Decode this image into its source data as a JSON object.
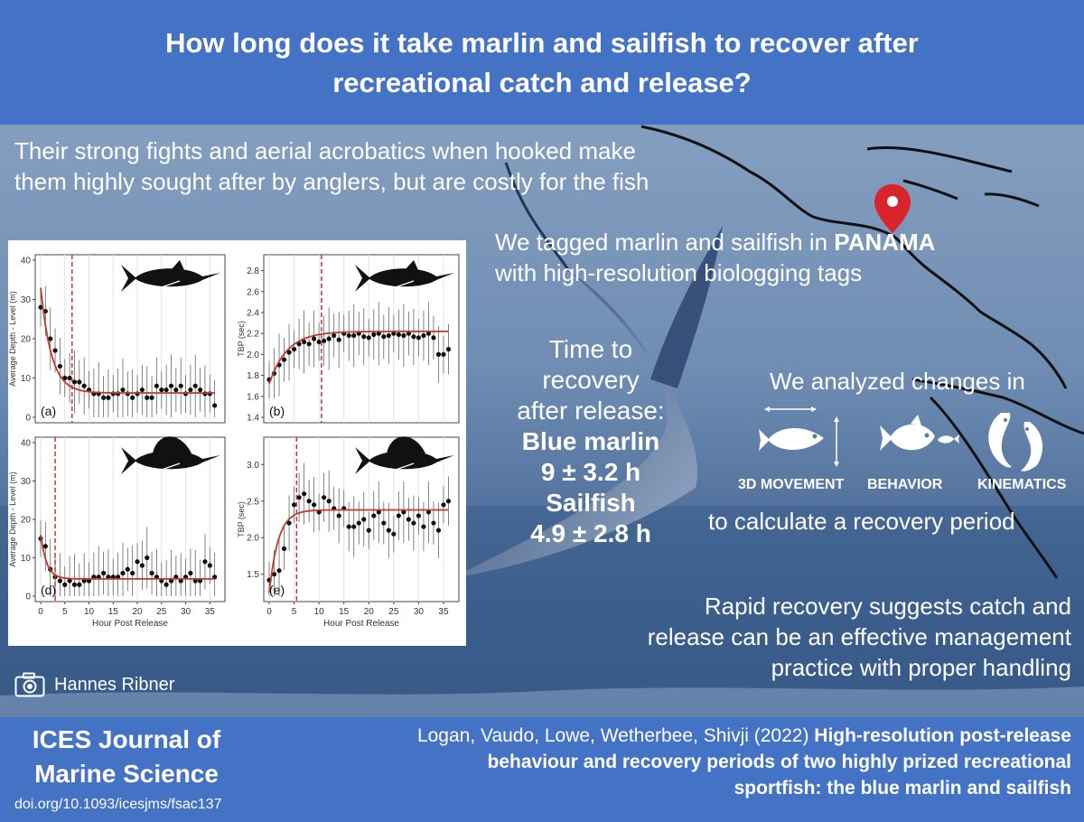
{
  "header": {
    "title_line1": "How long does it take marlin and sailfish to recover after",
    "title_line2": "recreational catch and release?"
  },
  "intro": {
    "line1": "Their strong fights and aerial acrobatics when hooked make",
    "line2": "them highly sought after by anglers, but are costly for the fish"
  },
  "tagged": {
    "line1_pre": "We tagged marlin and sailfish in ",
    "line1_bold": "PANAMA",
    "line2": "with high-resolution biologging tags"
  },
  "recovery": {
    "line1": "Time to",
    "line2": "recovery",
    "line3": "after release:",
    "marlin_label": "Blue marlin",
    "marlin_value": "9 ± 3.2 h",
    "sailfish_label": "Sailfish",
    "sailfish_value": "4.9 ± 2.8 h"
  },
  "analysis": {
    "heading": "We analyzed changes in",
    "icons": [
      "3D MOVEMENT",
      "BEHAVIOR",
      "KINEMATICS"
    ],
    "footer": "to calculate a recovery period"
  },
  "conclusion": {
    "line1": "Rapid recovery suggests catch and",
    "line2": "release can be an effective management",
    "line3": "practice with proper handling"
  },
  "credit": {
    "photographer": "Hannes Ribner"
  },
  "footer": {
    "journal_line1": "ICES Journal of",
    "journal_line2": "Marine Science",
    "doi": "doi.org/10.1093/icesjms/fsac137",
    "authors": "Logan, Vaudo, Lowe, Wetherbee, Shivji (2022) ",
    "title_line1": "High-resolution post-release",
    "title_line2": "behaviour and recovery periods of two highly prized recreational",
    "title_line3": "sportfish: the blue marlin and sailfish"
  },
  "colors": {
    "header_blue": "#4472c4",
    "pin_red": "#d9242b",
    "fit_red": "#c0392b"
  },
  "chart_data": [
    {
      "panel": "(a)",
      "type": "scatter",
      "species": "blue marlin",
      "xlabel": "",
      "ylabel": "Average Depth - Level (m)",
      "xlim": [
        0,
        37
      ],
      "ylim": [
        0,
        40
      ],
      "xticks": [],
      "yticks": [
        0,
        10,
        20,
        30,
        40
      ],
      "recovery_line_x": 6.5,
      "x": [
        0,
        1,
        2,
        3,
        4,
        5,
        6,
        7,
        8,
        9,
        10,
        11,
        12,
        13,
        14,
        15,
        16,
        17,
        18,
        19,
        20,
        21,
        22,
        23,
        24,
        25,
        26,
        27,
        28,
        29,
        30,
        31,
        32,
        33,
        34,
        35,
        36
      ],
      "y": [
        28,
        27,
        20,
        17,
        13,
        10,
        10,
        9,
        9,
        8,
        7,
        6,
        6,
        5,
        5,
        6,
        6,
        7,
        6,
        5,
        6,
        7,
        5,
        5,
        8,
        7,
        7,
        8,
        7,
        8,
        6,
        7,
        8,
        7,
        6,
        6,
        3
      ],
      "fit": {
        "start": 33,
        "end": 6.2,
        "rate": 0.45
      }
    },
    {
      "panel": "(b)",
      "type": "scatter",
      "species": "blue marlin",
      "xlabel": "",
      "ylabel": "TBP (sec)",
      "xlim": [
        0,
        37
      ],
      "ylim": [
        1.4,
        2.9
      ],
      "xticks": [],
      "yticks": [
        1.4,
        1.6,
        1.8,
        2.0,
        2.2,
        2.4,
        2.6,
        2.8
      ],
      "recovery_line_x": 10.5,
      "x": [
        0,
        1,
        2,
        3,
        4,
        5,
        6,
        7,
        8,
        9,
        10,
        11,
        12,
        13,
        14,
        15,
        16,
        17,
        18,
        19,
        20,
        21,
        22,
        23,
        24,
        25,
        26,
        27,
        28,
        29,
        30,
        31,
        32,
        33,
        34,
        35,
        36
      ],
      "y": [
        1.76,
        1.82,
        1.9,
        1.95,
        2.02,
        2.05,
        2.1,
        2.12,
        2.1,
        2.15,
        2.12,
        2.13,
        2.15,
        2.18,
        2.14,
        2.2,
        2.18,
        2.18,
        2.2,
        2.17,
        2.16,
        2.19,
        2.2,
        2.17,
        2.18,
        2.2,
        2.19,
        2.18,
        2.2,
        2.17,
        2.16,
        2.18,
        2.2,
        2.16,
        2.0,
        2.0,
        2.05
      ],
      "fit": {
        "start": 1.72,
        "end": 2.22,
        "rate": 0.28
      }
    },
    {
      "panel": "(d)",
      "type": "scatter",
      "species": "sailfish",
      "xlabel": "Hour Post Release",
      "ylabel": "Average Depth - Level (m)",
      "xlim": [
        0,
        37
      ],
      "ylim": [
        0,
        40
      ],
      "xticks": [
        0,
        5,
        10,
        15,
        20,
        25,
        30,
        35
      ],
      "yticks": [
        0,
        10,
        20,
        30,
        40
      ],
      "recovery_line_x": 3,
      "x": [
        0,
        1,
        2,
        3,
        4,
        5,
        6,
        7,
        8,
        9,
        10,
        11,
        12,
        13,
        14,
        15,
        16,
        17,
        18,
        19,
        20,
        21,
        22,
        23,
        24,
        25,
        26,
        27,
        28,
        29,
        30,
        31,
        32,
        33,
        34,
        35,
        36
      ],
      "y": [
        15,
        13,
        7,
        5,
        4,
        3,
        4,
        3,
        3,
        4,
        4,
        5,
        5,
        6,
        5,
        5,
        5,
        6,
        7,
        6,
        9,
        8,
        10,
        6,
        5,
        4,
        3,
        4,
        5,
        4,
        5,
        6,
        4,
        4,
        9,
        8,
        5
      ],
      "fit": {
        "start": 16,
        "end": 4.5,
        "rate": 0.8
      }
    },
    {
      "panel": "(e)",
      "type": "scatter",
      "species": "sailfish",
      "xlabel": "Hour Post Release",
      "ylabel": "TBP (sec)",
      "xlim": [
        0,
        37
      ],
      "ylim": [
        1.2,
        3.3
      ],
      "xticks": [
        0,
        5,
        10,
        15,
        20,
        25,
        30,
        35
      ],
      "yticks": [
        1.5,
        2.0,
        2.5,
        3.0
      ],
      "recovery_line_x": 5.5,
      "x": [
        0,
        1,
        2,
        3,
        4,
        5,
        6,
        7,
        8,
        9,
        10,
        11,
        12,
        13,
        14,
        15,
        16,
        17,
        18,
        19,
        20,
        21,
        22,
        23,
        24,
        25,
        26,
        27,
        28,
        29,
        30,
        31,
        32,
        33,
        34,
        35,
        36
      ],
      "y": [
        1.42,
        1.5,
        1.55,
        1.85,
        2.2,
        2.45,
        2.55,
        2.6,
        2.5,
        2.45,
        2.35,
        2.55,
        2.5,
        2.4,
        2.3,
        2.4,
        2.15,
        2.15,
        2.2,
        2.25,
        2.1,
        2.3,
        2.35,
        2.2,
        2.1,
        2.05,
        2.3,
        2.35,
        2.25,
        2.2,
        2.3,
        2.15,
        2.35,
        2.2,
        2.1,
        2.45,
        2.5
      ],
      "fit": {
        "start": 1.25,
        "end": 2.38,
        "rate": 0.55
      }
    }
  ]
}
